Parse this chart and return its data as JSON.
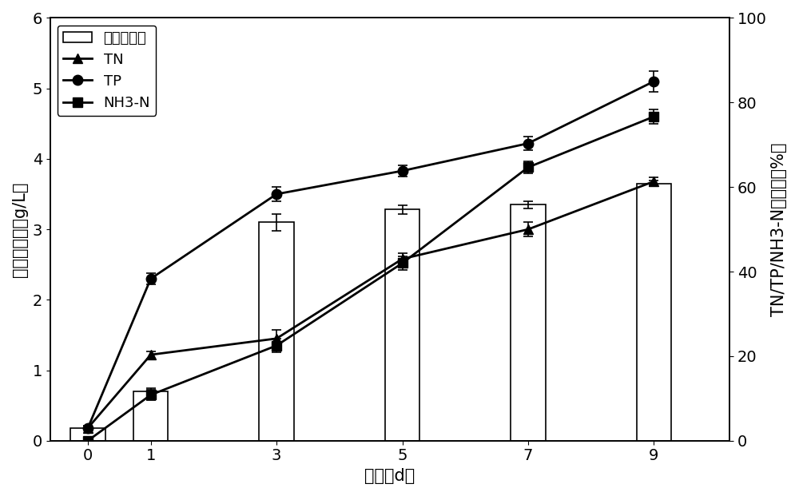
{
  "x_days": [
    0,
    1,
    3,
    5,
    7,
    9
  ],
  "bar_heights": [
    0.18,
    0.7,
    3.1,
    3.28,
    3.35,
    3.65
  ],
  "bar_errors": [
    0.03,
    0.05,
    0.12,
    0.06,
    0.05,
    0.04
  ],
  "TN_y": [
    0.18,
    1.22,
    1.45,
    2.58,
    3.0,
    3.68
  ],
  "TN_err": [
    0.02,
    0.05,
    0.12,
    0.08,
    0.1,
    0.06
  ],
  "TP_y": [
    0.18,
    2.3,
    3.5,
    3.83,
    4.22,
    5.1
  ],
  "TP_err": [
    0.03,
    0.08,
    0.1,
    0.08,
    0.1,
    0.15
  ],
  "NH3N_y": [
    0.0,
    0.65,
    1.35,
    2.52,
    3.88,
    4.6
  ],
  "NH3N_err": [
    0.02,
    0.07,
    0.1,
    0.1,
    0.08,
    0.1
  ],
  "left_ylim": [
    0,
    6
  ],
  "left_yticks": [
    0,
    1,
    2,
    3,
    4,
    5,
    6
  ],
  "right_ylim": [
    0,
    100
  ],
  "right_yticks": [
    0,
    20,
    40,
    60,
    80,
    100
  ],
  "xlabel": "时间（d）",
  "ylabel_left": "微藻生物量（g/L）",
  "ylabel_right": "TN/TP/NH3-N去除率（%）",
  "legend_biomass": "微藻生物量",
  "legend_TN": "TN",
  "legend_TP": "TP",
  "legend_NH3N": "NH3-N",
  "xticks": [
    0,
    1,
    3,
    5,
    7,
    9
  ],
  "bar_width": 0.55,
  "line_color": "black",
  "marker_size": 9,
  "linewidth": 2.0,
  "axis_fontsize": 15,
  "tick_fontsize": 14,
  "legend_fontsize": 13
}
